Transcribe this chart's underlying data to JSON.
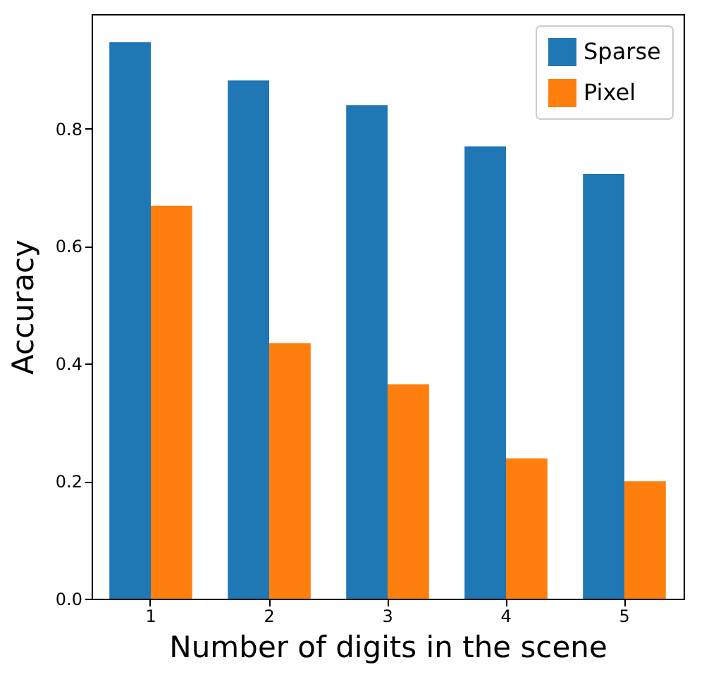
{
  "chart_data": {
    "type": "bar",
    "xlabel": "Number of digits in the scene",
    "ylabel": "Accuracy",
    "categories": [
      "1",
      "2",
      "3",
      "4",
      "5"
    ],
    "series": [
      {
        "name": "Sparse",
        "color": "#1f77b4",
        "values": [
          0.947,
          0.882,
          0.84,
          0.77,
          0.723
        ]
      },
      {
        "name": "Pixel",
        "color": "#ff7f0e",
        "values": [
          0.669,
          0.435,
          0.365,
          0.239,
          0.2
        ]
      }
    ],
    "ylim": [
      0,
      0.995
    ],
    "yticks": [
      {
        "value": 0,
        "label": "0.0"
      },
      {
        "value": 0.2,
        "label": "0.2"
      },
      {
        "value": 0.4,
        "label": "0.4"
      },
      {
        "value": 0.6,
        "label": "0.6"
      },
      {
        "value": 0.8,
        "label": "0.8"
      }
    ],
    "legend": "top right"
  }
}
